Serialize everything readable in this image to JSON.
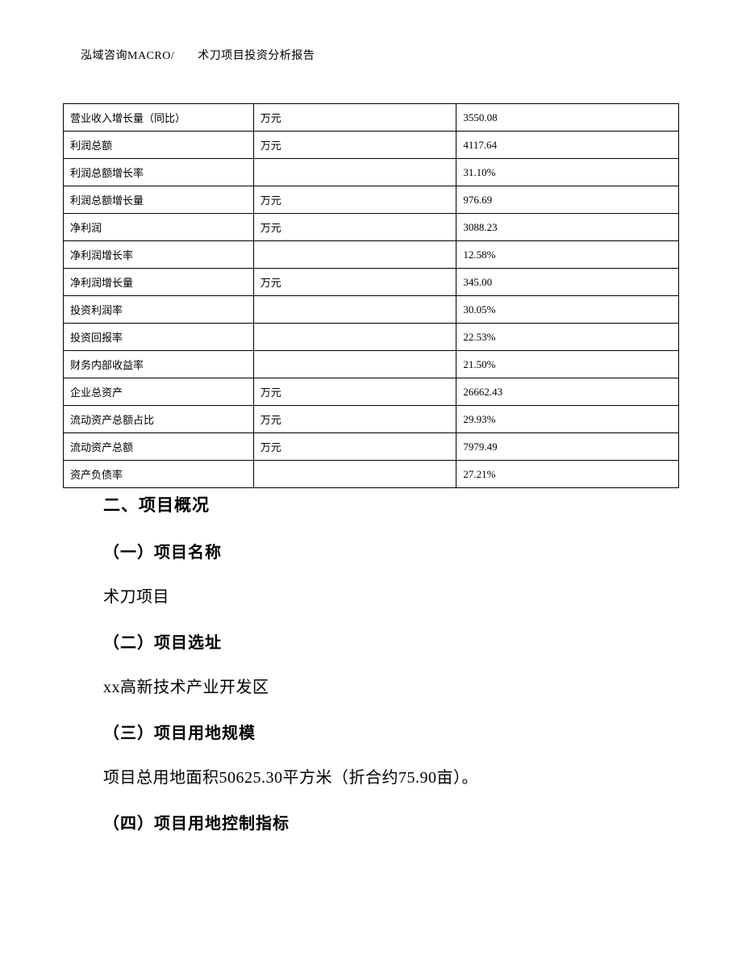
{
  "header": "泓域咨询MACRO/　　术刀项目投资分析报告",
  "table": {
    "border_color": "#000000",
    "font_size": 13,
    "background_color": "#ffffff",
    "rows": [
      {
        "label": "营业收入增长量（同比）",
        "unit": "万元",
        "value": "3550.08"
      },
      {
        "label": "利润总额",
        "unit": "万元",
        "value": "4117.64"
      },
      {
        "label": "利润总额增长率",
        "unit": "",
        "value": "31.10%"
      },
      {
        "label": "利润总额增长量",
        "unit": "万元",
        "value": "976.69"
      },
      {
        "label": "净利润",
        "unit": "万元",
        "value": "3088.23"
      },
      {
        "label": "净利润增长率",
        "unit": "",
        "value": "12.58%"
      },
      {
        "label": "净利润增长量",
        "unit": "万元",
        "value": "345.00"
      },
      {
        "label": "投资利润率",
        "unit": "",
        "value": "30.05%"
      },
      {
        "label": "投资回报率",
        "unit": "",
        "value": "22.53%"
      },
      {
        "label": "财务内部收益率",
        "unit": "",
        "value": "21.50%"
      },
      {
        "label": "企业总资产",
        "unit": "万元",
        "value": "26662.43"
      },
      {
        "label": "流动资产总额占比",
        "unit": "万元",
        "value": "29.93%"
      },
      {
        "label": "流动资产总额",
        "unit": "万元",
        "value": "7979.49"
      },
      {
        "label": "资产负债率",
        "unit": "",
        "value": "27.21%"
      }
    ]
  },
  "sections": {
    "main_heading": "二、项目概况",
    "sub1_heading": "（一）项目名称",
    "sub1_text": "术刀项目",
    "sub2_heading": "（二）项目选址",
    "sub2_text": "xx高新技术产业开发区",
    "sub3_heading": "（三）项目用地规模",
    "sub3_text": "项目总用地面积50625.30平方米（折合约75.90亩）。",
    "sub4_heading": "（四）项目用地控制指标"
  }
}
